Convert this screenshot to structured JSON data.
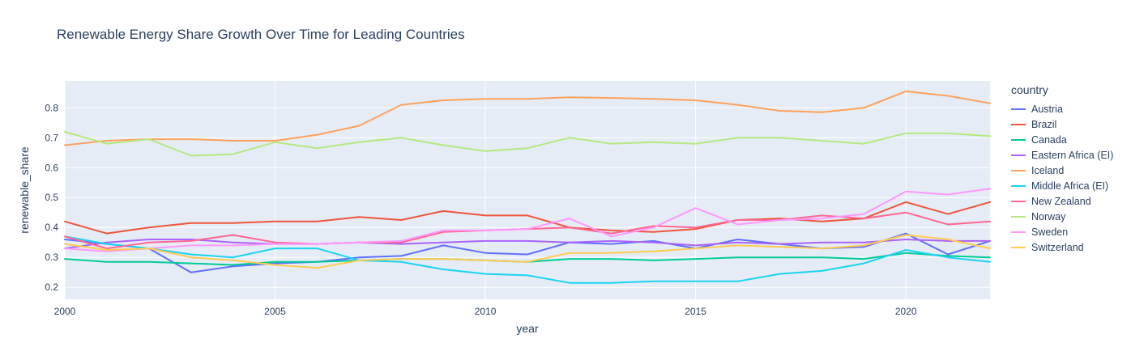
{
  "chart_data": {
    "type": "line",
    "title": "Renewable Energy Share Growth Over Time for Leading Countries",
    "xlabel": "year",
    "ylabel": "renewable_share",
    "legend_title": "country",
    "plot_bg": "#E5ECF6",
    "grid_color": "#ffffff",
    "text_color": "#2a3f5f",
    "xlim": [
      2000,
      2022
    ],
    "ylim": [
      0.16,
      0.89
    ],
    "x_ticks": [
      2000,
      2005,
      2010,
      2015,
      2020
    ],
    "y_ticks": [
      0.2,
      0.3,
      0.4,
      0.5,
      0.6,
      0.7,
      0.8
    ],
    "x": [
      2000,
      2001,
      2002,
      2003,
      2004,
      2005,
      2006,
      2007,
      2008,
      2009,
      2010,
      2011,
      2012,
      2013,
      2014,
      2015,
      2016,
      2017,
      2018,
      2019,
      2020,
      2021,
      2022
    ],
    "series": [
      {
        "name": "Austria",
        "color": "#636EFA",
        "values": [
          0.36,
          0.345,
          0.33,
          0.25,
          0.27,
          0.28,
          0.285,
          0.3,
          0.305,
          0.34,
          0.315,
          0.31,
          0.35,
          0.345,
          0.355,
          0.33,
          0.36,
          0.345,
          0.33,
          0.335,
          0.38,
          0.31,
          0.355
        ]
      },
      {
        "name": "Brazil",
        "color": "#EF553B",
        "values": [
          0.42,
          0.38,
          0.4,
          0.415,
          0.415,
          0.42,
          0.42,
          0.435,
          0.425,
          0.455,
          0.44,
          0.44,
          0.4,
          0.39,
          0.385,
          0.395,
          0.425,
          0.43,
          0.42,
          0.43,
          0.485,
          0.445,
          0.485
        ]
      },
      {
        "name": "Canada",
        "color": "#00CC96",
        "values": [
          0.295,
          0.285,
          0.285,
          0.28,
          0.275,
          0.285,
          0.285,
          0.29,
          0.295,
          0.295,
          0.29,
          0.285,
          0.295,
          0.295,
          0.29,
          0.295,
          0.3,
          0.3,
          0.3,
          0.295,
          0.315,
          0.305,
          0.3
        ]
      },
      {
        "name": "Eastern Africa (EI)",
        "color": "#AB63FA",
        "values": [
          0.33,
          0.35,
          0.36,
          0.36,
          0.35,
          0.345,
          0.345,
          0.35,
          0.345,
          0.35,
          0.355,
          0.355,
          0.35,
          0.355,
          0.35,
          0.34,
          0.35,
          0.345,
          0.35,
          0.35,
          0.36,
          0.355,
          0.355
        ]
      },
      {
        "name": "Iceland",
        "color": "#FFA15A",
        "values": [
          0.675,
          0.69,
          0.695,
          0.695,
          0.69,
          0.69,
          0.71,
          0.74,
          0.81,
          0.825,
          0.83,
          0.83,
          0.835,
          0.833,
          0.83,
          0.825,
          0.81,
          0.79,
          0.785,
          0.8,
          0.855,
          0.84,
          0.815
        ]
      },
      {
        "name": "Middle Africa (EI)",
        "color": "#19D3F3",
        "values": [
          0.37,
          0.345,
          0.33,
          0.31,
          0.3,
          0.33,
          0.33,
          0.29,
          0.285,
          0.26,
          0.245,
          0.24,
          0.215,
          0.215,
          0.22,
          0.22,
          0.22,
          0.245,
          0.255,
          0.28,
          0.325,
          0.3,
          0.285
        ]
      },
      {
        "name": "New Zealand",
        "color": "#FF6692",
        "values": [
          0.37,
          0.33,
          0.35,
          0.355,
          0.375,
          0.35,
          0.345,
          0.35,
          0.35,
          0.385,
          0.39,
          0.395,
          0.4,
          0.38,
          0.405,
          0.4,
          0.425,
          0.425,
          0.44,
          0.43,
          0.45,
          0.41,
          0.42
        ]
      },
      {
        "name": "Norway",
        "color": "#B6E880",
        "values": [
          0.72,
          0.68,
          0.695,
          0.64,
          0.645,
          0.685,
          0.665,
          0.685,
          0.7,
          0.675,
          0.655,
          0.665,
          0.7,
          0.68,
          0.685,
          0.68,
          0.7,
          0.7,
          0.69,
          0.68,
          0.715,
          0.715,
          0.705
        ]
      },
      {
        "name": "Sweden",
        "color": "#FF97FF",
        "values": [
          0.33,
          0.32,
          0.33,
          0.34,
          0.34,
          0.345,
          0.345,
          0.35,
          0.355,
          0.39,
          0.39,
          0.395,
          0.43,
          0.37,
          0.4,
          0.465,
          0.41,
          0.425,
          0.43,
          0.445,
          0.52,
          0.51,
          0.53
        ]
      },
      {
        "name": "Switzerland",
        "color": "#FECB52",
        "values": [
          0.345,
          0.325,
          0.33,
          0.3,
          0.29,
          0.275,
          0.265,
          0.29,
          0.295,
          0.295,
          0.29,
          0.285,
          0.315,
          0.315,
          0.32,
          0.33,
          0.34,
          0.335,
          0.33,
          0.34,
          0.375,
          0.36,
          0.33
        ]
      }
    ]
  }
}
